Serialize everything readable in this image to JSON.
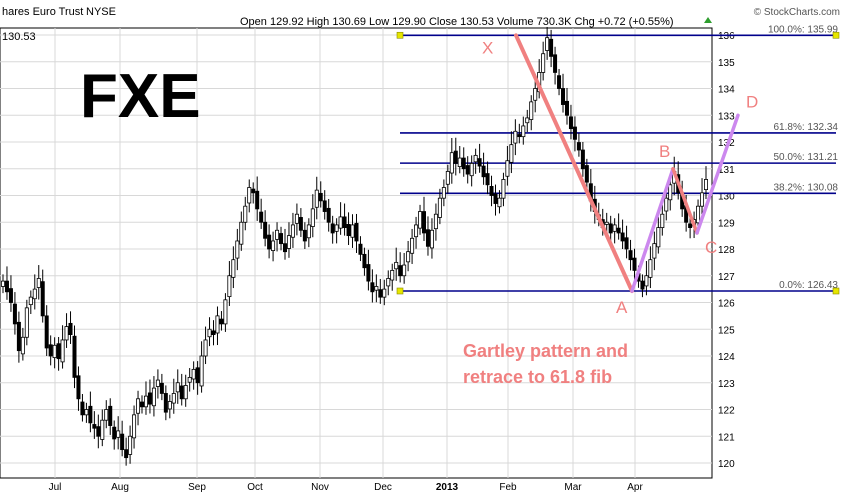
{
  "header": {
    "title": "hares Euro Trust",
    "exchange": "NYSE",
    "stats_label": "Open 129.92  High 130.69  Low 129.90  Close 130.53  Volume 730.3K  Chg +0.72 (+0.55%)",
    "change_icon": "triangle-up-icon",
    "watermark": "© StockCharts.com",
    "last_price": "130.53"
  },
  "colors": {
    "fib_line": "#00008b",
    "xa_leg": "#f08080",
    "projection": "#cc88ee",
    "annotation": "#f08080",
    "candle": "#000000"
  },
  "chart_data": {
    "type": "candlestick",
    "ticker": "FXE",
    "annotation": [
      "Gartley pattern and",
      "retrace to 61.8 fib"
    ],
    "x_categories": [
      "Jul",
      "Aug",
      "Sep",
      "Oct",
      "Nov",
      "Dec",
      "2013",
      "Feb",
      "Mar",
      "Apr"
    ],
    "y_ticks": [
      120,
      121,
      122,
      123,
      124,
      125,
      126,
      127,
      128,
      129,
      130,
      131,
      132,
      133,
      134,
      135,
      136
    ],
    "ylim": [
      119.5,
      136.2
    ],
    "grid": true,
    "fib_levels": [
      {
        "label": "100.0%: 135.99",
        "value": 135.99
      },
      {
        "label": "61.8%: 132.34",
        "value": 132.34
      },
      {
        "label": "50.0%: 131.21",
        "value": 131.21
      },
      {
        "label": "38.2%: 130.08",
        "value": 130.08
      },
      {
        "label": "0.0%: 126.43",
        "value": 126.43
      }
    ],
    "pattern_points": [
      {
        "label": "X",
        "value": 135.99
      },
      {
        "label": "A",
        "value": 126.43
      },
      {
        "label": "B",
        "value": 131.0
      },
      {
        "label": "C",
        "value": 128.6
      },
      {
        "label": "D",
        "value": 133.0
      }
    ],
    "price_series": [
      126.8,
      126.4,
      126.0,
      125.2,
      124.2,
      124.7,
      125.8,
      126.2,
      126.5,
      126.9,
      125.5,
      124.3,
      124.0,
      124.4,
      123.9,
      124.6,
      125.1,
      124.8,
      123.2,
      122.4,
      121.8,
      122.0,
      121.5,
      121.3,
      121.0,
      121.6,
      122.0,
      121.4,
      120.9,
      121.2,
      120.5,
      120.2,
      121.0,
      121.8,
      122.4,
      122.1,
      122.5,
      122.2,
      122.8,
      123.1,
      122.6,
      121.9,
      122.3,
      122.6,
      123.0,
      122.4,
      122.9,
      123.2,
      123.5,
      123.0,
      124.0,
      124.6,
      125.0,
      124.8,
      125.5,
      125.2,
      126.1,
      127.0,
      127.6,
      128.3,
      129.0,
      129.6,
      130.3,
      130.1,
      129.5,
      129.0,
      128.4,
      128.0,
      128.3,
      128.7,
      128.2,
      127.9,
      128.5,
      128.9,
      129.3,
      128.7,
      128.3,
      128.9,
      129.5,
      130.2,
      129.8,
      129.4,
      129.0,
      128.6,
      128.9,
      129.2,
      128.8,
      128.5,
      128.9,
      128.3,
      127.8,
      127.3,
      126.8,
      126.4,
      126.6,
      126.2,
      126.5,
      126.9,
      127.2,
      127.5,
      127.0,
      127.4,
      127.9,
      128.4,
      128.9,
      129.4,
      128.6,
      128.1,
      128.7,
      129.3,
      129.9,
      130.3,
      130.9,
      131.6,
      131.2,
      131.4,
      131.0,
      130.8,
      131.2,
      131.5,
      131.1,
      130.7,
      130.4,
      130.0,
      129.7,
      129.9,
      130.6,
      131.3,
      131.9,
      132.4,
      132.2,
      132.6,
      132.9,
      133.5,
      134.0,
      134.6,
      135.3,
      135.9,
      135.2,
      134.6,
      134.0,
      133.4,
      133.0,
      132.5,
      132.1,
      131.7,
      131.0,
      130.5,
      129.8,
      129.4,
      129.1,
      128.8,
      129.0,
      128.6,
      128.9,
      128.6,
      128.3,
      128.0,
      127.6,
      127.2,
      126.8,
      126.5,
      127.0,
      127.6,
      128.2,
      128.8,
      129.3,
      129.9,
      130.4,
      130.9,
      130.1,
      129.5,
      129.0,
      128.8,
      129.1,
      129.6,
      130.1,
      130.6
    ]
  }
}
